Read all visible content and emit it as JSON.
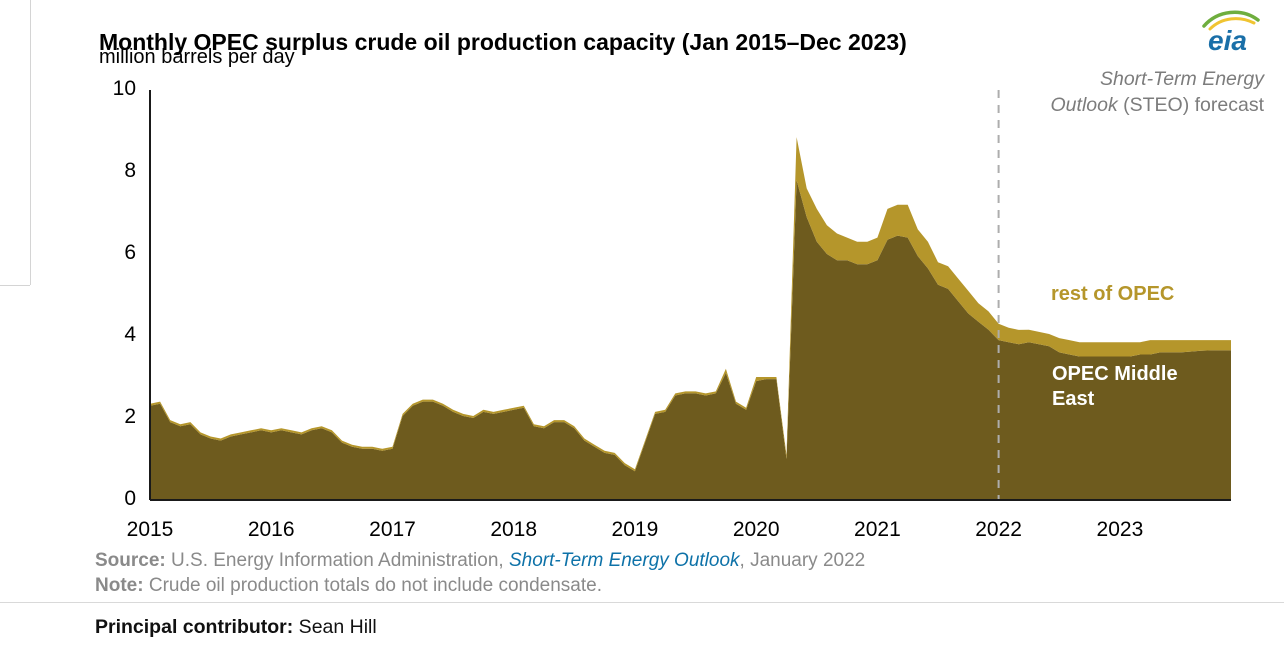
{
  "page": {
    "title": "Monthly OPEC surplus crude oil production capacity (Jan 2015–Dec 2023)",
    "subtitle": "million barrels per day",
    "logo_text": "eia",
    "principal_contributor_label": "Principal contributor:",
    "principal_contributor_name": " Sean Hill"
  },
  "annotation": {
    "line1": "Short-Term Energy",
    "line2_italic": "Outlook",
    "line2_rest": " (STEO) forecast"
  },
  "source": {
    "label": "Source:",
    "text_before": " U.S. Energy Information Administration, ",
    "link_text": "Short-Term Energy Outlook",
    "text_after": ", January 2022"
  },
  "note": {
    "label": "Note:",
    "text": " Crude oil production totals do not include condensate."
  },
  "chart_data": {
    "type": "area",
    "stacked": true,
    "title": "Monthly OPEC surplus crude oil production capacity (Jan 2015–Dec 2023)",
    "xlabel": "",
    "ylabel": "million barrels per day",
    "ylim": [
      0,
      10
    ],
    "y_ticks": [
      0,
      2,
      4,
      6,
      8,
      10
    ],
    "x_start": "2015-01",
    "x_end": "2023-12",
    "x_tick_years": [
      "2015",
      "2016",
      "2017",
      "2018",
      "2019",
      "2020",
      "2021",
      "2022",
      "2023"
    ],
    "forecast_start": "2022-01",
    "forecast_month_index": 84,
    "forecast_line_color": "#adadad",
    "legend_position": "in-plot-right",
    "grid": false,
    "series": [
      {
        "name": "OPEC Middle East",
        "color": "#6e5b1e",
        "values": [
          2.3,
          2.35,
          1.9,
          1.8,
          1.85,
          1.6,
          1.5,
          1.45,
          1.55,
          1.6,
          1.65,
          1.7,
          1.65,
          1.7,
          1.65,
          1.6,
          1.7,
          1.75,
          1.65,
          1.4,
          1.3,
          1.25,
          1.25,
          1.2,
          1.25,
          2.05,
          2.3,
          2.4,
          2.4,
          2.3,
          2.15,
          2.05,
          2.0,
          2.15,
          2.1,
          2.15,
          2.2,
          2.25,
          1.8,
          1.75,
          1.9,
          1.9,
          1.75,
          1.45,
          1.3,
          1.15,
          1.1,
          0.85,
          0.7,
          1.4,
          2.1,
          2.15,
          2.55,
          2.6,
          2.6,
          2.55,
          2.6,
          3.1,
          2.35,
          2.2,
          2.9,
          2.95,
          2.95,
          1.0,
          7.8,
          6.9,
          6.3,
          6.0,
          5.85,
          5.85,
          5.75,
          5.75,
          5.85,
          6.35,
          6.45,
          6.4,
          5.95,
          5.65,
          5.25,
          5.15,
          4.85,
          4.55,
          4.35,
          4.15,
          3.9,
          3.85,
          3.8,
          3.85,
          3.8,
          3.75,
          3.6,
          3.55,
          3.5,
          3.5,
          3.5,
          3.5,
          3.5,
          3.5,
          3.55,
          3.55,
          3.6,
          3.6,
          3.6,
          3.62,
          3.64,
          3.65,
          3.65,
          3.65
        ]
      },
      {
        "name": "rest of OPEC",
        "color": "#b5962b",
        "values": [
          0.05,
          0.05,
          0.05,
          0.05,
          0.05,
          0.05,
          0.05,
          0.05,
          0.05,
          0.05,
          0.05,
          0.05,
          0.05,
          0.05,
          0.05,
          0.05,
          0.05,
          0.05,
          0.05,
          0.05,
          0.05,
          0.05,
          0.05,
          0.05,
          0.05,
          0.05,
          0.05,
          0.05,
          0.05,
          0.05,
          0.05,
          0.05,
          0.05,
          0.05,
          0.05,
          0.05,
          0.05,
          0.05,
          0.05,
          0.05,
          0.05,
          0.05,
          0.05,
          0.05,
          0.05,
          0.05,
          0.05,
          0.05,
          0.05,
          0.05,
          0.05,
          0.05,
          0.05,
          0.05,
          0.05,
          0.05,
          0.05,
          0.1,
          0.05,
          0.05,
          0.1,
          0.05,
          0.05,
          0.1,
          1.05,
          0.7,
          0.8,
          0.7,
          0.65,
          0.55,
          0.55,
          0.55,
          0.55,
          0.75,
          0.75,
          0.8,
          0.65,
          0.65,
          0.55,
          0.55,
          0.55,
          0.55,
          0.45,
          0.45,
          0.4,
          0.35,
          0.35,
          0.3,
          0.3,
          0.3,
          0.35,
          0.35,
          0.35,
          0.35,
          0.35,
          0.35,
          0.35,
          0.35,
          0.3,
          0.35,
          0.3,
          0.3,
          0.3,
          0.28,
          0.26,
          0.25,
          0.25,
          0.25
        ]
      }
    ]
  },
  "colors": {
    "opec_middle_east": "#6e5b1e",
    "rest_of_opec": "#b5962b",
    "steo_link_blue": "#0e72a8",
    "gray_text": "#8a8a8a",
    "forecast_dash": "#adadad"
  }
}
